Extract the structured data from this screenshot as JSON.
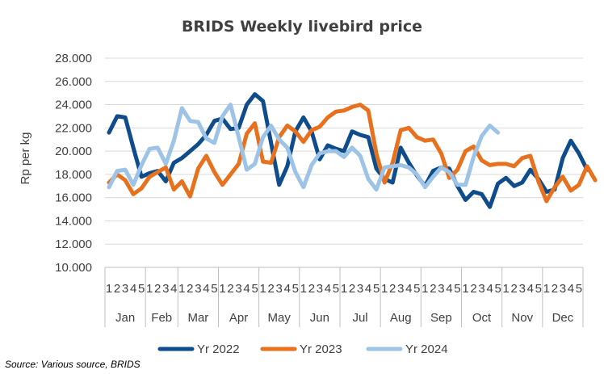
{
  "chart_data": {
    "type": "line",
    "title": "BRIDS Weekly livebird price",
    "ylabel": "Rp per kg",
    "xlabel": "",
    "ylim": [
      10000,
      28000
    ],
    "ytick_step": 2000,
    "ytick_labels": [
      "10.000",
      "12.000",
      "14.000",
      "16.000",
      "18.000",
      "20.000",
      "22.000",
      "24.000",
      "26.000",
      "28.000"
    ],
    "months": [
      "Jan",
      "Feb",
      "Mar",
      "Apr",
      "May",
      "Jun",
      "Jul",
      "Aug",
      "Sep",
      "Oct",
      "Nov",
      "Dec"
    ],
    "weeks_per_month": [
      5,
      4,
      5,
      5,
      5,
      5,
      5,
      5,
      5,
      5,
      5,
      5
    ],
    "grid": true,
    "legend": "bottom",
    "series": [
      {
        "name": "Yr 2022",
        "color": "#0f4c8b",
        "values": [
          21600,
          23000,
          22900,
          20300,
          17800,
          18100,
          18300,
          17400,
          19000,
          19400,
          20000,
          20600,
          21400,
          22600,
          22800,
          21900,
          22000,
          24000,
          24900,
          24300,
          20700,
          17100,
          18700,
          21700,
          22900,
          21700,
          19300,
          20500,
          20200,
          20000,
          21700,
          21400,
          21200,
          18500,
          17600,
          17300,
          20300,
          19000,
          17900,
          17000,
          18300,
          18600,
          18500,
          17000,
          15800,
          16500,
          16300,
          15200,
          17200,
          17700,
          17000,
          17300,
          18400,
          17600,
          16500,
          16700,
          19400,
          20900,
          19800,
          18400
        ]
      },
      {
        "name": "Yr 2023",
        "color": "#e8711e",
        "values": [
          17300,
          18000,
          17500,
          16300,
          16800,
          17800,
          18200,
          18600,
          16700,
          17400,
          16100,
          18500,
          19600,
          18200,
          17100,
          18000,
          18900,
          21500,
          22400,
          19100,
          19000,
          21200,
          22200,
          21700,
          20800,
          21800,
          22100,
          22900,
          23400,
          23500,
          23800,
          24000,
          23500,
          19800,
          17300,
          19000,
          21800,
          22000,
          21200,
          20900,
          21000,
          19800,
          17700,
          18400,
          20000,
          20400,
          19200,
          18800,
          18900,
          18900,
          18700,
          19400,
          19600,
          17400,
          15700,
          16900,
          17800,
          16600,
          17100,
          18700,
          17500
        ]
      },
      {
        "name": "Yr 2024",
        "color": "#9dc3e6",
        "values": [
          16900,
          18300,
          18400,
          17100,
          18800,
          20200,
          20300,
          18900,
          20900,
          23700,
          22600,
          22500,
          21100,
          20700,
          23000,
          24000,
          21200,
          18400,
          18900,
          21200,
          22200,
          21000,
          20300,
          18200,
          16900,
          18800,
          19800,
          20000,
          20000,
          19500,
          20300,
          19600,
          17600,
          16700,
          18600,
          18700,
          18800,
          18600,
          18000,
          16900,
          17800,
          18600,
          18200,
          17100,
          17100,
          19500,
          21300,
          22200,
          21600
        ]
      }
    ]
  },
  "source": "Source: Various source, BRIDS"
}
